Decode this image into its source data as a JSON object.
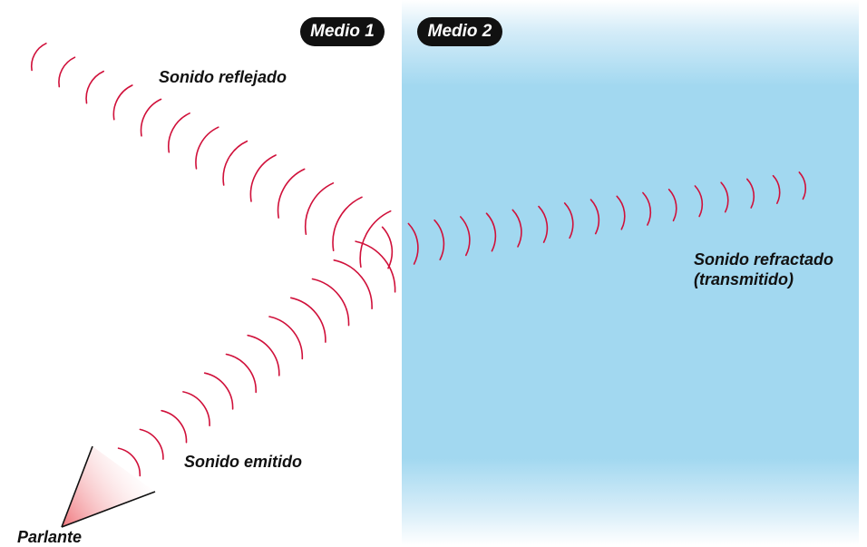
{
  "medium1": {
    "label": "Medio 1"
  },
  "medium2": {
    "label": "Medio 2",
    "color": "#a2d8f0"
  },
  "labels": {
    "reflected": "Sonido reflejado",
    "refracted_line1": "Sonido refractado",
    "refracted_line2": "(transmitido)",
    "emitted": "Sonido emitido",
    "speaker": "Parlante"
  },
  "colors": {
    "wave": "#d0103a",
    "speaker_fill": "#f07a80",
    "pill_bg": "#111111"
  },
  "icons": {
    "speaker": "speaker-cone-icon"
  }
}
